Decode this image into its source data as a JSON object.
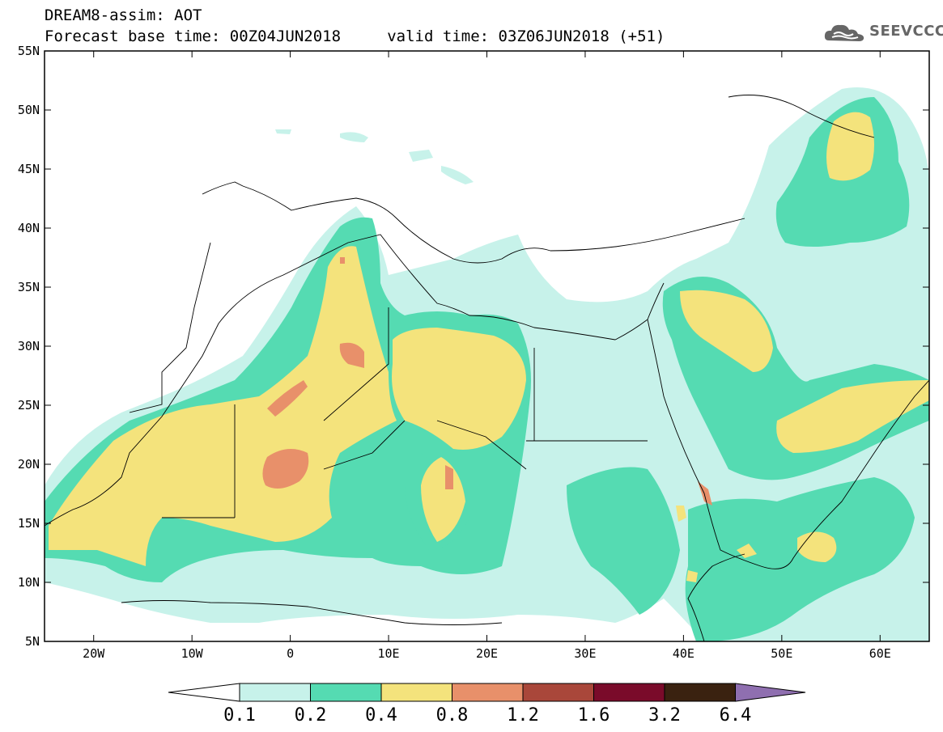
{
  "header": {
    "title_line1": "DREAM8-assim: AOT",
    "title_line2": "Forecast base time: 00Z04JUN2018     valid time: 03Z06JUN2018 (+51)",
    "logo_text": "SEEVCCC",
    "logo_icon": "cloud-icon"
  },
  "map": {
    "lon_labels": [
      "20W",
      "10W",
      "0",
      "10E",
      "20E",
      "30E",
      "40E",
      "50E",
      "60E"
    ],
    "lat_labels": [
      "55N",
      "50N",
      "45N",
      "40N",
      "35N",
      "30N",
      "25N",
      "20N",
      "15N",
      "10N",
      "5N"
    ],
    "extent": {
      "lon": [
        -25,
        65
      ],
      "lat": [
        5,
        55
      ]
    }
  },
  "colorbar": {
    "labels": [
      "0.1",
      "0.2",
      "0.4",
      "0.8",
      "1.2",
      "1.6",
      "3.2",
      "6.4"
    ],
    "colors": [
      "#c7f2ea",
      "#55dbb2",
      "#f4e37c",
      "#e8906a",
      "#a9473a",
      "#7a0b2a",
      "#3a2210",
      "#8f6fb0"
    ]
  }
}
